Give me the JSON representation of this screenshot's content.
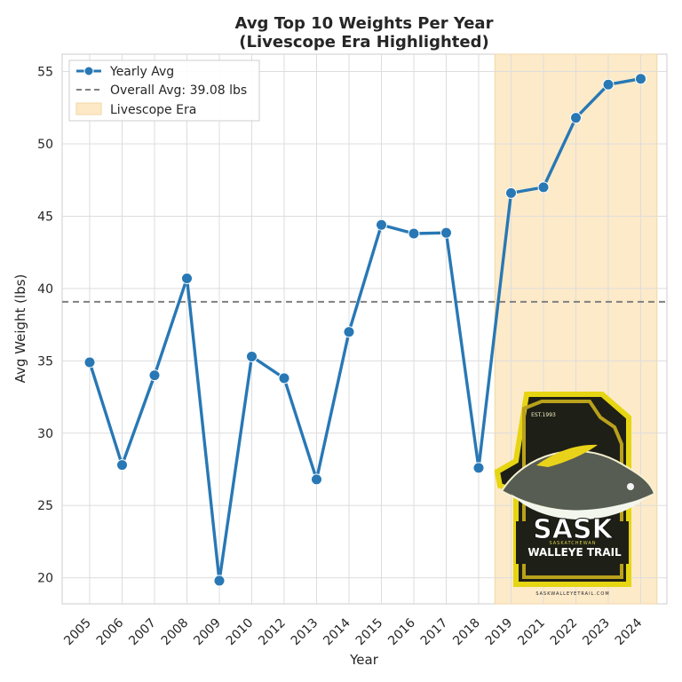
{
  "chart_data": {
    "type": "line",
    "title": "Avg Top 10 Weights Per Year",
    "subtitle": "(Livescope Era Highlighted)",
    "xlabel": "Year",
    "ylabel": "Avg Weight (lbs)",
    "ylim": [
      18.2,
      56.2
    ],
    "yticks": [
      20,
      25,
      30,
      35,
      40,
      45,
      50,
      55
    ],
    "grid": true,
    "legend_position": "top-left",
    "categories": [
      "2005",
      "2006",
      "2007",
      "2008",
      "2009",
      "2010",
      "2012",
      "2013",
      "2014",
      "2015",
      "2016",
      "2017",
      "2018",
      "2019",
      "2021",
      "2022",
      "2023",
      "2024"
    ],
    "series": [
      {
        "name": "Yearly Avg",
        "color": "#2878b5",
        "values": [
          34.9,
          27.8,
          34.0,
          40.7,
          19.8,
          35.3,
          33.8,
          26.8,
          37.0,
          44.4,
          43.8,
          43.85,
          27.6,
          46.6,
          47.0,
          51.8,
          54.1,
          54.5
        ]
      }
    ],
    "reference_line": {
      "label": "Overall Avg: 39.08 lbs",
      "value": 39.08,
      "color": "#808080"
    },
    "highlight": {
      "label": "Livescope Era",
      "from": "2019",
      "to": "2024",
      "color": "#fce9c6"
    },
    "logo": {
      "text_main": "SASK",
      "text_sub": "WALLEYE TRAIL",
      "text_region": "SASKATCHEWAN",
      "text_est": "EST.1993",
      "text_url": "SASKWALLEYETRAIL.COM"
    }
  }
}
